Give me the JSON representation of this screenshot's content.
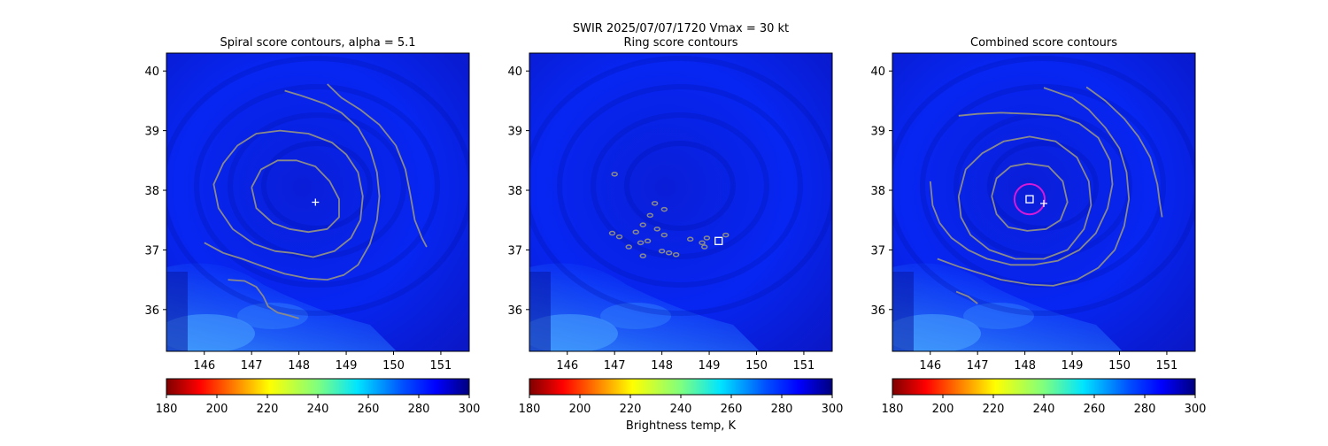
{
  "figure": {
    "suptitle_line1": "SWIR  2025/07/07/1720    Vmax = 30 kt",
    "colorbar_label": "Brightness temp, K"
  },
  "colors": {
    "scene_base": "#0a20f0",
    "contour": "#8a8a8a",
    "marker": "#ffffff",
    "combined_circle": "#d81ad8"
  },
  "chart_data": [
    {
      "type": "heatmap",
      "title": "Spiral score contours, alpha =  5.1",
      "x_ticks": [
        146,
        147,
        148,
        149,
        150,
        151
      ],
      "y_ticks": [
        36,
        37,
        38,
        39,
        40
      ],
      "xlim": [
        145.2,
        151.6
      ],
      "ylim": [
        35.3,
        40.3
      ],
      "center_marker": {
        "symbol": "+",
        "lon": 148.35,
        "lat": 37.8
      },
      "contours": [
        [
          [
            147.0,
            38.05
          ],
          [
            147.2,
            38.35
          ],
          [
            147.55,
            38.5
          ],
          [
            147.95,
            38.5
          ],
          [
            148.35,
            38.4
          ],
          [
            148.65,
            38.15
          ],
          [
            148.85,
            37.85
          ],
          [
            148.85,
            37.55
          ],
          [
            148.6,
            37.35
          ],
          [
            148.2,
            37.3
          ],
          [
            147.8,
            37.35
          ],
          [
            147.45,
            37.45
          ],
          [
            147.1,
            37.7
          ],
          [
            147.0,
            38.05
          ]
        ],
        [
          [
            147.85,
            36.95
          ],
          [
            148.3,
            36.88
          ],
          [
            148.75,
            36.98
          ],
          [
            149.1,
            37.2
          ],
          [
            149.3,
            37.5
          ],
          [
            149.35,
            37.9
          ],
          [
            149.25,
            38.3
          ],
          [
            149.0,
            38.6
          ],
          [
            148.7,
            38.8
          ],
          [
            148.2,
            38.95
          ],
          [
            147.6,
            39.0
          ],
          [
            147.1,
            38.95
          ],
          [
            146.7,
            38.75
          ],
          [
            146.4,
            38.45
          ],
          [
            146.2,
            38.1
          ],
          [
            146.3,
            37.7
          ],
          [
            146.6,
            37.35
          ],
          [
            147.05,
            37.1
          ],
          [
            147.5,
            36.98
          ],
          [
            147.85,
            36.95
          ]
        ],
        [
          [
            146.0,
            37.12
          ],
          [
            146.4,
            36.95
          ],
          [
            146.8,
            36.85
          ],
          [
            147.25,
            36.72
          ],
          [
            147.7,
            36.6
          ],
          [
            148.2,
            36.52
          ],
          [
            148.6,
            36.5
          ],
          [
            148.95,
            36.58
          ],
          [
            149.25,
            36.75
          ],
          [
            149.5,
            37.1
          ],
          [
            149.65,
            37.5
          ],
          [
            149.7,
            37.9
          ],
          [
            149.65,
            38.3
          ],
          [
            149.5,
            38.7
          ],
          [
            149.25,
            39.05
          ],
          [
            148.9,
            39.3
          ],
          [
            148.55,
            39.45
          ],
          [
            148.3,
            39.52
          ],
          [
            148.0,
            39.6
          ],
          [
            147.7,
            39.67
          ]
        ],
        [
          [
            146.5,
            36.5
          ],
          [
            146.85,
            36.48
          ],
          [
            147.1,
            36.38
          ],
          [
            147.25,
            36.22
          ],
          [
            147.35,
            36.05
          ],
          [
            147.55,
            35.95
          ],
          [
            147.8,
            35.9
          ],
          [
            148.0,
            35.85
          ]
        ],
        [
          [
            148.6,
            39.78
          ],
          [
            148.9,
            39.55
          ],
          [
            149.3,
            39.35
          ],
          [
            149.7,
            39.1
          ],
          [
            150.05,
            38.75
          ],
          [
            150.25,
            38.35
          ],
          [
            150.35,
            37.95
          ],
          [
            150.45,
            37.5
          ],
          [
            150.6,
            37.2
          ],
          [
            150.7,
            37.05
          ]
        ]
      ]
    },
    {
      "type": "heatmap",
      "title": "Ring score contours",
      "x_ticks": [
        146,
        147,
        148,
        149,
        150,
        151
      ],
      "y_ticks": [
        36,
        37,
        38,
        39,
        40
      ],
      "xlim": [
        145.2,
        151.6
      ],
      "ylim": [
        35.3,
        40.3
      ],
      "center_marker": {
        "symbol": "square",
        "lon": 149.2,
        "lat": 37.15
      },
      "contour_blobs": [
        [
          147.0,
          38.27
        ],
        [
          146.95,
          37.28
        ],
        [
          147.1,
          37.22
        ],
        [
          147.45,
          37.3
        ],
        [
          147.6,
          37.42
        ],
        [
          147.75,
          37.58
        ],
        [
          147.9,
          37.35
        ],
        [
          148.05,
          37.25
        ],
        [
          147.7,
          37.15
        ],
        [
          147.3,
          37.05
        ],
        [
          148.05,
          37.68
        ],
        [
          147.55,
          37.12
        ],
        [
          148.6,
          37.18
        ],
        [
          148.85,
          37.12
        ],
        [
          148.95,
          37.2
        ],
        [
          149.35,
          37.25
        ],
        [
          148.15,
          36.95
        ],
        [
          148.0,
          36.98
        ],
        [
          148.3,
          36.92
        ],
        [
          147.6,
          36.9
        ],
        [
          148.9,
          37.05
        ],
        [
          147.85,
          37.78
        ]
      ]
    },
    {
      "type": "heatmap",
      "title": "Combined score contours",
      "x_ticks": [
        146,
        147,
        148,
        149,
        150,
        151
      ],
      "y_ticks": [
        36,
        37,
        38,
        39,
        40
      ],
      "xlim": [
        145.2,
        151.6
      ],
      "ylim": [
        35.3,
        40.3
      ],
      "center_marker": {
        "symbol": "square",
        "lon": 148.1,
        "lat": 37.85
      },
      "first_guess_marker": {
        "symbol": "+",
        "lon": 148.4,
        "lat": 37.78
      },
      "circle": {
        "lon": 148.1,
        "lat": 37.85,
        "radius_deg": 0.32
      },
      "contours": [
        [
          [
            147.3,
            37.9
          ],
          [
            147.4,
            38.2
          ],
          [
            147.7,
            38.4
          ],
          [
            148.05,
            38.45
          ],
          [
            148.5,
            38.4
          ],
          [
            148.8,
            38.15
          ],
          [
            148.9,
            37.8
          ],
          [
            148.75,
            37.5
          ],
          [
            148.45,
            37.35
          ],
          [
            148.05,
            37.32
          ],
          [
            147.65,
            37.38
          ],
          [
            147.4,
            37.6
          ],
          [
            147.3,
            37.9
          ]
        ],
        [
          [
            146.6,
            37.9
          ],
          [
            146.75,
            38.35
          ],
          [
            147.1,
            38.62
          ],
          [
            147.55,
            38.82
          ],
          [
            148.1,
            38.9
          ],
          [
            148.65,
            38.82
          ],
          [
            149.1,
            38.55
          ],
          [
            149.35,
            38.15
          ],
          [
            149.4,
            37.75
          ],
          [
            149.25,
            37.35
          ],
          [
            148.9,
            37.0
          ],
          [
            148.4,
            36.85
          ],
          [
            147.8,
            36.85
          ],
          [
            147.25,
            37.0
          ],
          [
            146.85,
            37.25
          ],
          [
            146.65,
            37.55
          ],
          [
            146.6,
            37.9
          ]
        ],
        [
          [
            146.0,
            38.15
          ],
          [
            146.05,
            37.75
          ],
          [
            146.2,
            37.45
          ],
          [
            146.45,
            37.2
          ],
          [
            146.8,
            37.0
          ],
          [
            147.2,
            36.85
          ],
          [
            147.7,
            36.75
          ],
          [
            148.2,
            36.75
          ],
          [
            148.7,
            36.82
          ],
          [
            149.15,
            37.0
          ],
          [
            149.5,
            37.28
          ],
          [
            149.75,
            37.7
          ],
          [
            149.85,
            38.1
          ],
          [
            149.8,
            38.5
          ],
          [
            149.55,
            38.88
          ],
          [
            149.15,
            39.12
          ],
          [
            148.7,
            39.25
          ],
          [
            148.1,
            39.28
          ],
          [
            147.5,
            39.3
          ],
          [
            147.0,
            39.28
          ],
          [
            146.6,
            39.25
          ]
        ],
        [
          [
            146.15,
            36.85
          ],
          [
            146.6,
            36.72
          ],
          [
            147.0,
            36.62
          ],
          [
            147.5,
            36.5
          ],
          [
            148.1,
            36.42
          ],
          [
            148.6,
            36.4
          ],
          [
            149.1,
            36.5
          ],
          [
            149.55,
            36.7
          ],
          [
            149.9,
            37.0
          ],
          [
            150.1,
            37.4
          ],
          [
            150.2,
            37.85
          ],
          [
            150.15,
            38.3
          ],
          [
            150.0,
            38.7
          ],
          [
            149.7,
            39.05
          ],
          [
            149.35,
            39.35
          ],
          [
            149.0,
            39.55
          ],
          [
            148.65,
            39.65
          ],
          [
            148.4,
            39.72
          ]
        ],
        [
          [
            146.55,
            36.3
          ],
          [
            146.8,
            36.22
          ],
          [
            147.0,
            36.1
          ]
        ],
        [
          [
            149.3,
            39.73
          ],
          [
            149.7,
            39.5
          ],
          [
            150.1,
            39.2
          ],
          [
            150.4,
            38.9
          ],
          [
            150.65,
            38.55
          ],
          [
            150.8,
            38.1
          ],
          [
            150.85,
            37.8
          ],
          [
            150.9,
            37.55
          ]
        ]
      ]
    }
  ],
  "colorbar": {
    "tick_labels": [
      "180",
      "200",
      "220",
      "240",
      "260",
      "280",
      "300"
    ],
    "min": 180,
    "max": 300,
    "colormap": "jet_reversed"
  }
}
